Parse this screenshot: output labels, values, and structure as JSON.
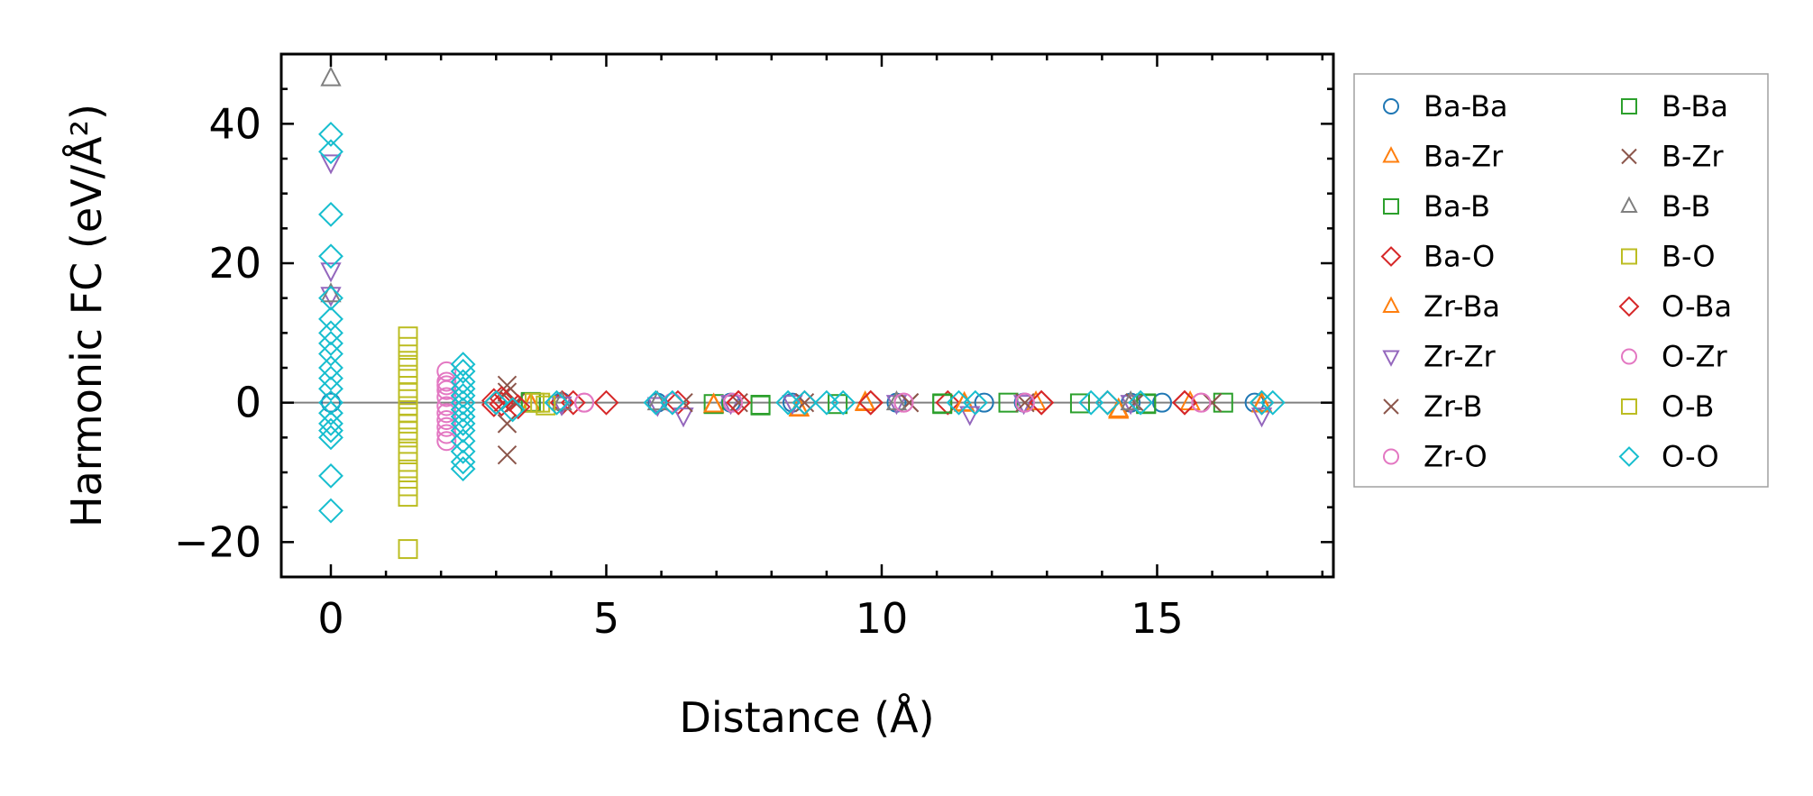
{
  "chart_data": {
    "type": "scatter",
    "title": "",
    "xlabel": "Distance (Å)",
    "ylabel": "Harmonic FC (eV/Å²)",
    "xlim": [
      -0.9,
      18.2
    ],
    "ylim": [
      -25,
      50
    ],
    "xticks": [
      0,
      5,
      10,
      15
    ],
    "xtick_labels": [
      "0",
      "5",
      "10",
      "15"
    ],
    "yticks": [
      -20,
      0,
      20,
      40
    ],
    "ytick_labels": [
      "−20",
      "0",
      "20",
      "40"
    ],
    "grid": false,
    "zero_line": true,
    "legend_position": "outside-right",
    "legend_columns": 2,
    "series": [
      {
        "name": "Ba-Ba",
        "marker": "circle",
        "color": "#1f77b4",
        "points": [
          [
            0,
            0
          ],
          [
            4.19,
            0.1
          ],
          [
            5.93,
            0
          ],
          [
            7.26,
            0
          ],
          [
            8.38,
            0
          ],
          [
            10.27,
            0
          ],
          [
            11.86,
            0
          ],
          [
            12.58,
            0
          ],
          [
            14.52,
            0
          ],
          [
            15.09,
            0
          ],
          [
            16.77,
            0
          ]
        ]
      },
      {
        "name": "Ba-Zr",
        "marker": "triangle-up",
        "color": "#ff7f0e",
        "points": [
          [
            3.63,
            -0.3
          ],
          [
            6.95,
            -0.4
          ],
          [
            8.5,
            -0.9
          ],
          [
            9.7,
            -0.1
          ],
          [
            11.5,
            -0.2
          ],
          [
            12.8,
            0
          ],
          [
            14.3,
            -1.2
          ],
          [
            15.6,
            0
          ],
          [
            16.9,
            -0.3
          ]
        ]
      },
      {
        "name": "Ba-B",
        "marker": "square",
        "color": "#2ca02c",
        "points": [
          [
            3.63,
            0
          ],
          [
            6.95,
            -0.2
          ],
          [
            7.8,
            -0.4
          ],
          [
            9.2,
            -0.2
          ],
          [
            11.1,
            -0.2
          ],
          [
            12.3,
            0
          ],
          [
            13.6,
            -0.1
          ],
          [
            14.8,
            -0.2
          ],
          [
            16.2,
            0
          ]
        ]
      },
      {
        "name": "Ba-O",
        "marker": "diamond",
        "color": "#d62728",
        "points": [
          [
            2.96,
            0.3
          ],
          [
            3.1,
            -0.2
          ],
          [
            3.25,
            0.5
          ],
          [
            4.2,
            0
          ],
          [
            4.4,
            0
          ],
          [
            5.0,
            0
          ],
          [
            6.3,
            0
          ],
          [
            7.4,
            0
          ],
          [
            8.6,
            0
          ],
          [
            9.8,
            0
          ],
          [
            11.2,
            0
          ],
          [
            12.9,
            0
          ],
          [
            14.1,
            0
          ],
          [
            15.5,
            0
          ],
          [
            16.9,
            0
          ]
        ]
      },
      {
        "name": "Zr-Ba",
        "marker": "triangle-up",
        "color": "#ff7f0e",
        "points": [
          [
            3.63,
            -0.2
          ],
          [
            6.95,
            -0.3
          ],
          [
            8.5,
            -0.8
          ],
          [
            9.7,
            0
          ],
          [
            11.5,
            -0.1
          ],
          [
            14.3,
            -1.0
          ],
          [
            16.9,
            -0.2
          ]
        ]
      },
      {
        "name": "Zr-Zr",
        "marker": "triangle-down",
        "color": "#9467bd",
        "points": [
          [
            0,
            34.5
          ],
          [
            0,
            19
          ],
          [
            0,
            15.5
          ],
          [
            4.19,
            -0.2
          ],
          [
            5.93,
            -0.3
          ],
          [
            6.4,
            -1.8
          ],
          [
            7.26,
            0
          ],
          [
            8.38,
            0
          ],
          [
            10.27,
            0
          ],
          [
            11.6,
            -1.6
          ],
          [
            12.58,
            0
          ],
          [
            14.52,
            0
          ],
          [
            16.9,
            -1.8
          ]
        ]
      },
      {
        "name": "Zr-B",
        "marker": "cross",
        "color": "#8c564b",
        "points": [
          [
            3.2,
            2.5
          ],
          [
            3.2,
            -7.5
          ],
          [
            3.35,
            0
          ],
          [
            6.4,
            0
          ],
          [
            7.4,
            0
          ],
          [
            8.6,
            0
          ],
          [
            10.5,
            0
          ],
          [
            12.6,
            0
          ],
          [
            14.6,
            0
          ],
          [
            16,
            0
          ]
        ]
      },
      {
        "name": "Zr-O",
        "marker": "circle",
        "color": "#e377c2",
        "points": [
          [
            2.1,
            4.5
          ],
          [
            2.1,
            3
          ],
          [
            2.1,
            1.8
          ],
          [
            2.1,
            0.8
          ],
          [
            2.1,
            -0.5
          ],
          [
            2.1,
            -1.5
          ],
          [
            2.1,
            -2.5
          ],
          [
            2.1,
            -4.5
          ],
          [
            2.1,
            -5.5
          ],
          [
            4.6,
            0
          ],
          [
            6.2,
            0
          ],
          [
            7.3,
            0
          ],
          [
            10.4,
            0
          ],
          [
            12.6,
            0
          ],
          [
            15.8,
            0
          ]
        ]
      },
      {
        "name": "B-Ba",
        "marker": "square",
        "color": "#2ca02c",
        "points": [
          [
            3.63,
            0.1
          ],
          [
            7.8,
            -0.3
          ],
          [
            11.1,
            -0.1
          ],
          [
            14.8,
            -0.1
          ]
        ]
      },
      {
        "name": "B-Zr",
        "marker": "cross",
        "color": "#8c564b",
        "points": [
          [
            3.2,
            1.5
          ],
          [
            3.2,
            -3
          ],
          [
            10.5,
            0
          ],
          [
            16,
            0
          ]
        ]
      },
      {
        "name": "B-B",
        "marker": "triangle-up",
        "color": "#7f7f7f",
        "points": [
          [
            0,
            46.5
          ],
          [
            0,
            15.5
          ],
          [
            4.19,
            0
          ],
          [
            5.93,
            0
          ],
          [
            10.27,
            0
          ],
          [
            14.52,
            0
          ]
        ]
      },
      {
        "name": "B-O",
        "marker": "square",
        "color": "#bcbd22",
        "points": [
          [
            1.4,
            9.5
          ],
          [
            1.4,
            8
          ],
          [
            1.4,
            5
          ],
          [
            1.4,
            4
          ],
          [
            1.4,
            1.5
          ],
          [
            1.4,
            0.5
          ],
          [
            1.4,
            -0.5
          ],
          [
            1.4,
            -1.5
          ],
          [
            1.4,
            -3
          ],
          [
            1.4,
            -4
          ],
          [
            1.4,
            -5
          ],
          [
            1.4,
            -8.5
          ],
          [
            1.4,
            -10
          ],
          [
            1.4,
            -13.5
          ],
          [
            1.4,
            -21
          ],
          [
            3.7,
            0
          ],
          [
            3.9,
            -0.4
          ]
        ]
      },
      {
        "name": "O-Ba",
        "marker": "diamond",
        "color": "#d62728",
        "points": [
          [
            2.96,
            -0.3
          ],
          [
            3.1,
            0.6
          ],
          [
            3.4,
            -0.6
          ],
          [
            7.4,
            0
          ],
          [
            9.8,
            0
          ],
          [
            12.9,
            0
          ],
          [
            15.5,
            0
          ]
        ]
      },
      {
        "name": "O-Zr",
        "marker": "circle",
        "color": "#e377c2",
        "points": [
          [
            2.1,
            2.5
          ],
          [
            2.1,
            -3.5
          ],
          [
            4.6,
            0
          ],
          [
            10.4,
            0
          ],
          [
            12.6,
            0
          ],
          [
            15.8,
            0
          ]
        ]
      },
      {
        "name": "O-B",
        "marker": "square",
        "color": "#bcbd22",
        "points": [
          [
            1.4,
            6
          ],
          [
            1.4,
            -7
          ],
          [
            1.4,
            -12
          ],
          [
            3.8,
            0
          ]
        ]
      },
      {
        "name": "O-O",
        "marker": "diamond",
        "color": "#17becf",
        "points": [
          [
            0,
            38.5
          ],
          [
            0,
            36
          ],
          [
            0,
            27
          ],
          [
            0,
            21
          ],
          [
            0,
            15
          ],
          [
            0,
            12
          ],
          [
            0,
            10
          ],
          [
            0,
            8.5
          ],
          [
            0,
            7
          ],
          [
            0,
            5
          ],
          [
            0,
            3.5
          ],
          [
            0,
            2
          ],
          [
            0,
            0
          ],
          [
            0,
            -1.5
          ],
          [
            0,
            -3
          ],
          [
            0,
            -4
          ],
          [
            0,
            -5
          ],
          [
            0,
            -10.5
          ],
          [
            0,
            -15.5
          ],
          [
            2.4,
            5.5
          ],
          [
            2.4,
            4.5
          ],
          [
            2.4,
            3
          ],
          [
            2.4,
            2
          ],
          [
            2.4,
            1
          ],
          [
            2.4,
            0
          ],
          [
            2.4,
            -1
          ],
          [
            2.4,
            -2
          ],
          [
            2.4,
            -3
          ],
          [
            2.4,
            -4
          ],
          [
            2.4,
            -5.5
          ],
          [
            2.4,
            -7
          ],
          [
            2.4,
            -8.5
          ],
          [
            2.4,
            -9.5
          ],
          [
            3.0,
            0
          ],
          [
            3.3,
            -1
          ],
          [
            4.1,
            0
          ],
          [
            5.9,
            0
          ],
          [
            6.2,
            0
          ],
          [
            8.3,
            0
          ],
          [
            8.6,
            0
          ],
          [
            9.0,
            0
          ],
          [
            9.3,
            0
          ],
          [
            11.4,
            0
          ],
          [
            11.7,
            0
          ],
          [
            13.8,
            0
          ],
          [
            14.1,
            0
          ],
          [
            14.7,
            0
          ],
          [
            16.9,
            0
          ],
          [
            17.1,
            0
          ]
        ]
      }
    ]
  }
}
